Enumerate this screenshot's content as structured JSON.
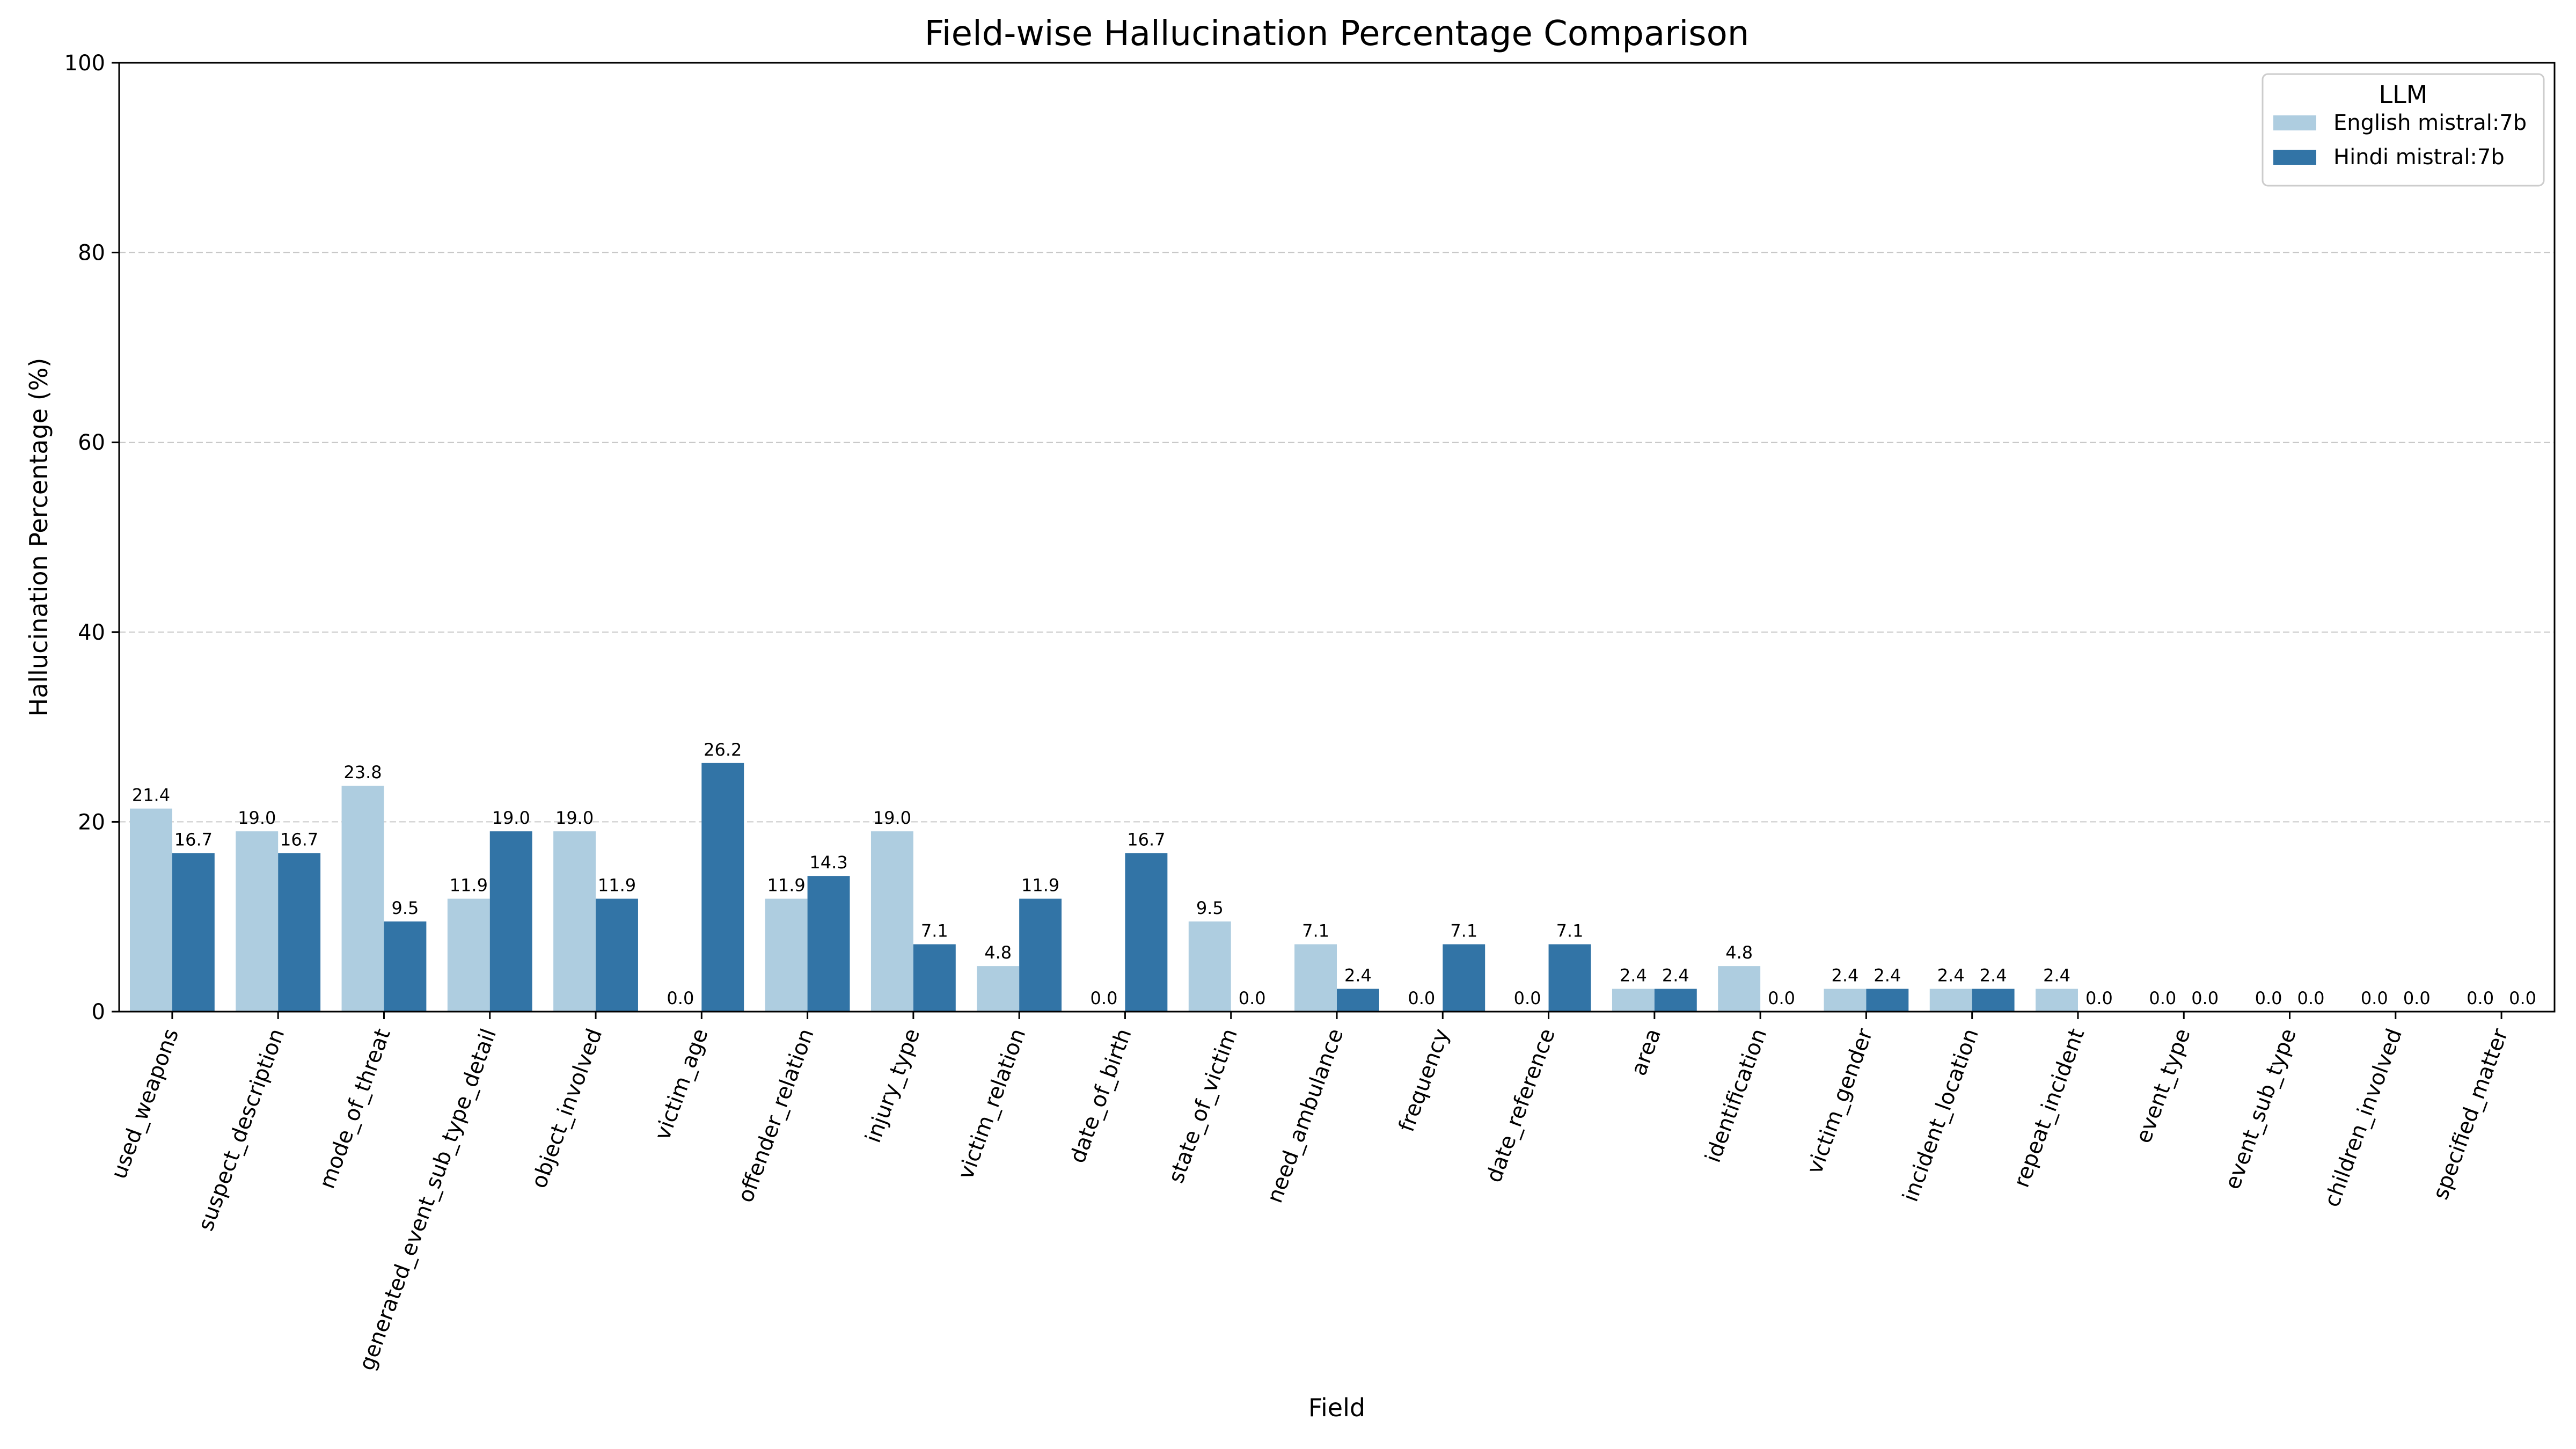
{
  "chart_data": {
    "type": "bar",
    "title": "Field-wise Hallucination Percentage Comparison",
    "xlabel": "Field",
    "ylabel": "Hallucination Percentage (%)",
    "ylim": [
      0,
      100
    ],
    "yticks": [
      0,
      20,
      40,
      60,
      80,
      100
    ],
    "grid": "horizontal dashed",
    "legend": {
      "title": "LLM",
      "position": "top-right"
    },
    "categories": [
      "used_weapons",
      "suspect_description",
      "mode_of_threat",
      "generated_event_sub_type_detail",
      "object_involved",
      "victim_age",
      "offender_relation",
      "injury_type",
      "victim_relation",
      "date_of_birth",
      "state_of_victim",
      "need_ambulance",
      "frequency",
      "date_reference",
      "area",
      "identification",
      "victim_gender",
      "incident_location",
      "repeat_incident",
      "event_type",
      "event_sub_type",
      "children_involved",
      "specified_matter"
    ],
    "series": [
      {
        "name": "English mistral:7b",
        "color": "#aecde0",
        "values": [
          21.4,
          19.0,
          23.8,
          11.9,
          19.0,
          0.0,
          11.9,
          19.0,
          4.8,
          0.0,
          9.5,
          7.1,
          0.0,
          0.0,
          2.4,
          4.8,
          2.4,
          2.4,
          2.4,
          0.0,
          0.0,
          0.0,
          0.0
        ]
      },
      {
        "name": "Hindi mistral:7b",
        "color": "#3274a6",
        "values": [
          16.7,
          16.7,
          9.5,
          19.0,
          11.9,
          26.2,
          14.3,
          7.1,
          11.9,
          16.7,
          0.0,
          2.4,
          7.1,
          7.1,
          2.4,
          0.0,
          2.4,
          2.4,
          0.0,
          0.0,
          0.0,
          0.0,
          0.0
        ]
      }
    ]
  }
}
